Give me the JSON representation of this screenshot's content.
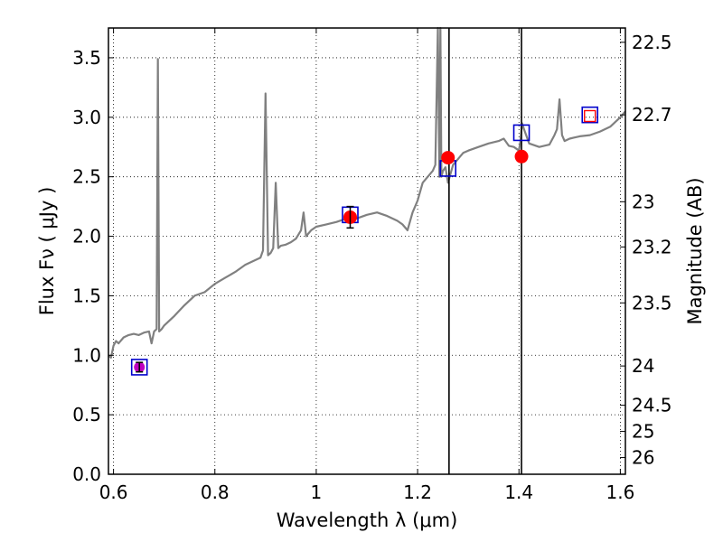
{
  "chart_data": {
    "type": "line",
    "xlabel": "Wavelength  λ (μm)",
    "ylabel": "Flux  Fν  ( μJy )",
    "y2label": "Magnitude (AB)",
    "xlim": [
      0.59,
      1.61
    ],
    "ylim": [
      0.0,
      3.75
    ],
    "grid": true,
    "x_ticks": [
      {
        "value": 0.6,
        "label": "0.6"
      },
      {
        "value": 0.8,
        "label": "0.8"
      },
      {
        "value": 1.0,
        "label": "1"
      },
      {
        "value": 1.2,
        "label": "1.2"
      },
      {
        "value": 1.4,
        "label": "1.4"
      },
      {
        "value": 1.6,
        "label": "1.6"
      }
    ],
    "y_ticks": [
      {
        "value": 0.0,
        "label": "0.0"
      },
      {
        "value": 0.5,
        "label": "0.5"
      },
      {
        "value": 1.0,
        "label": "1.0"
      },
      {
        "value": 1.5,
        "label": "1.5"
      },
      {
        "value": 2.0,
        "label": "2.0"
      },
      {
        "value": 2.5,
        "label": "2.5"
      },
      {
        "value": 3.0,
        "label": "3.0"
      },
      {
        "value": 3.5,
        "label": "3.5"
      }
    ],
    "y2_ticks": [
      {
        "flux": 3.63,
        "label": "22.5"
      },
      {
        "flux": 3.02,
        "label": "22.7"
      },
      {
        "flux": 2.29,
        "label": "23"
      },
      {
        "flux": 1.91,
        "label": "23.2"
      },
      {
        "flux": 1.44,
        "label": "23.5"
      },
      {
        "flux": 0.91,
        "label": "24"
      },
      {
        "flux": 0.58,
        "label": "24.5"
      },
      {
        "flux": 0.36,
        "label": "25"
      },
      {
        "flux": 0.14,
        "label": "26"
      }
    ],
    "vlines": [
      1.262,
      1.405
    ],
    "colors": {
      "model": "#808080",
      "photometry": "#ff0000",
      "model_box": "#0000cc",
      "upper_box": "#ff0000",
      "magenta": "#bf00bf",
      "vline": "#000000"
    },
    "model_spectrum": {
      "x": [
        0.59,
        0.595,
        0.6,
        0.605,
        0.61,
        0.62,
        0.63,
        0.64,
        0.65,
        0.66,
        0.67,
        0.675,
        0.68,
        0.685,
        0.6875,
        0.69,
        0.695,
        0.7,
        0.72,
        0.74,
        0.76,
        0.78,
        0.8,
        0.82,
        0.84,
        0.86,
        0.88,
        0.89,
        0.895,
        0.9,
        0.905,
        0.91,
        0.915,
        0.92,
        0.925,
        0.93,
        0.94,
        0.95,
        0.96,
        0.97,
        0.975,
        0.98,
        0.99,
        1.0,
        1.02,
        1.04,
        1.06,
        1.08,
        1.1,
        1.12,
        1.14,
        1.16,
        1.17,
        1.18,
        1.19,
        1.2,
        1.21,
        1.22,
        1.23,
        1.235,
        1.24,
        1.243,
        1.245,
        1.247,
        1.25,
        1.255,
        1.26,
        1.27,
        1.28,
        1.29,
        1.3,
        1.32,
        1.34,
        1.36,
        1.37,
        1.38,
        1.39,
        1.4,
        1.403,
        1.406,
        1.41,
        1.42,
        1.44,
        1.46,
        1.47,
        1.475,
        1.48,
        1.485,
        1.49,
        1.5,
        1.52,
        1.54,
        1.56,
        1.58,
        1.6,
        1.61
      ],
      "y": [
        1.0,
        0.98,
        1.08,
        1.12,
        1.1,
        1.15,
        1.17,
        1.18,
        1.17,
        1.19,
        1.2,
        1.1,
        1.2,
        1.22,
        3.49,
        1.2,
        1.22,
        1.25,
        1.33,
        1.42,
        1.5,
        1.53,
        1.6,
        1.65,
        1.7,
        1.76,
        1.8,
        1.82,
        1.88,
        3.2,
        1.84,
        1.86,
        1.9,
        2.45,
        1.9,
        1.92,
        1.93,
        1.95,
        1.98,
        2.05,
        2.2,
        2.0,
        2.05,
        2.08,
        2.1,
        2.12,
        2.15,
        2.15,
        2.18,
        2.2,
        2.17,
        2.13,
        2.1,
        2.05,
        2.2,
        2.3,
        2.45,
        2.5,
        2.55,
        2.6,
        3.75,
        2.5,
        3.75,
        2.5,
        2.55,
        2.58,
        2.45,
        2.6,
        2.65,
        2.7,
        2.72,
        2.75,
        2.78,
        2.8,
        2.82,
        2.76,
        2.75,
        2.72,
        2.8,
        2.95,
        2.9,
        2.78,
        2.75,
        2.77,
        2.85,
        2.9,
        3.15,
        2.85,
        2.8,
        2.82,
        2.84,
        2.85,
        2.88,
        2.92,
        3.0,
        3.05
      ]
    },
    "observed_points": [
      {
        "x": 0.651,
        "y": 0.9,
        "yerr": 0.04,
        "color": "magenta"
      },
      {
        "x": 1.067,
        "y": 2.16,
        "yerr": 0.09,
        "color": "red"
      },
      {
        "x": 1.26,
        "y": 2.66,
        "yerr": 0.0,
        "color": "red"
      },
      {
        "x": 1.405,
        "y": 2.67,
        "yerr": 0.0,
        "color": "red"
      }
    ],
    "model_boxes": [
      {
        "x": 0.651,
        "y": 0.9
      },
      {
        "x": 1.067,
        "y": 2.18
      },
      {
        "x": 1.26,
        "y": 2.57
      },
      {
        "x": 1.405,
        "y": 2.87
      },
      {
        "x": 1.54,
        "y": 3.02
      }
    ],
    "upper_limit_boxes": [
      {
        "x": 1.54,
        "y": 3.01
      }
    ]
  }
}
